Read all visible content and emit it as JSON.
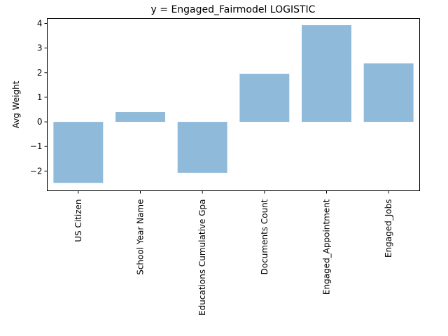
{
  "chart_data": {
    "type": "bar",
    "title": "y = Engaged_Fairmodel LOGISTIC",
    "xlabel": "",
    "ylabel": "Avg Weight",
    "categories": [
      "US Citizen",
      "School Year Name",
      "Educations Cumulative Gpa",
      "Documents Count",
      "Engaged_Appointment",
      "Engaged_Jobs"
    ],
    "values": [
      -2.48,
      0.4,
      -2.07,
      1.95,
      3.93,
      2.38
    ],
    "ylim": [
      -2.8,
      4.2
    ],
    "yticks": [
      -2,
      -1,
      0,
      1,
      2,
      3,
      4
    ],
    "ytick_labels": [
      "−2",
      "−1",
      "0",
      "1",
      "2",
      "3",
      "4"
    ],
    "grid": false,
    "bar_color": "#8fbad9"
  }
}
